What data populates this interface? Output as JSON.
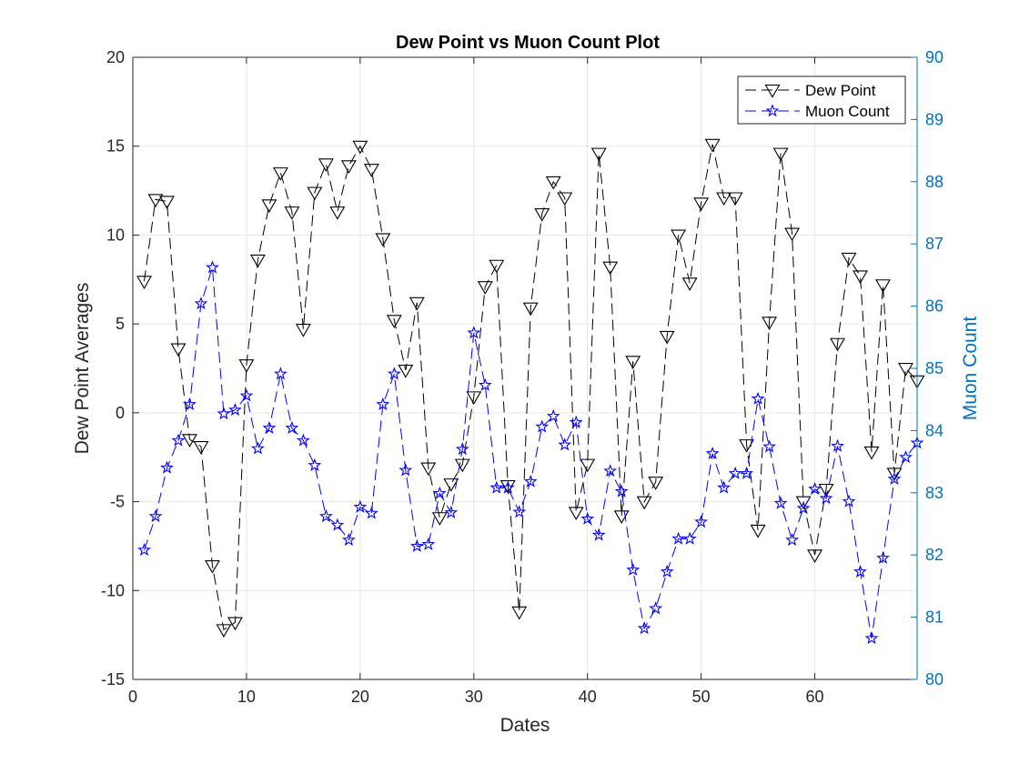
{
  "chart_data": {
    "type": "line",
    "title": "Dew Point vs Muon Count Plot",
    "xlabel": "Dates",
    "ylabel_left": "Dew Point Averages",
    "ylabel_right": "Muon Count",
    "xlim": [
      0,
      69
    ],
    "ylim_left": [
      -15,
      20
    ],
    "ylim_right": [
      80,
      90
    ],
    "xticks": [
      0,
      10,
      20,
      30,
      40,
      50,
      60
    ],
    "yticks_left": [
      -15,
      -10,
      -5,
      0,
      5,
      10,
      15,
      20
    ],
    "yticks_right": [
      80,
      81,
      82,
      83,
      84,
      85,
      86,
      87,
      88,
      89,
      90
    ],
    "grid": true,
    "legend_position": "top-right",
    "colors": {
      "left_axis": "#262626",
      "right_axis": "#0072BD",
      "dew_point": "#000000",
      "muon_count": "#0000ff",
      "grid": "#e6e6e6"
    },
    "series": [
      {
        "name": "Dew Point",
        "axis": "left",
        "marker": "triangle-down",
        "line": "dashed",
        "x": [
          1,
          2,
          3,
          4,
          5,
          6,
          7,
          8,
          9,
          10,
          11,
          12,
          13,
          14,
          15,
          16,
          17,
          18,
          19,
          20,
          21,
          22,
          23,
          24,
          25,
          26,
          27,
          28,
          29,
          30,
          31,
          32,
          33,
          34,
          35,
          36,
          37,
          38,
          39,
          40,
          41,
          42,
          43,
          44,
          45,
          46,
          47,
          48,
          49,
          50,
          51,
          52,
          53,
          54,
          55,
          56,
          57,
          58,
          59,
          60,
          61,
          62,
          63,
          64,
          65,
          66,
          67,
          68,
          69
        ],
        "y": [
          7.4,
          12.0,
          11.9,
          3.6,
          -1.5,
          -1.9,
          -8.6,
          -12.2,
          -11.8,
          2.7,
          8.6,
          11.7,
          13.5,
          11.3,
          4.7,
          12.4,
          14.0,
          11.3,
          13.9,
          15.0,
          13.7,
          9.8,
          5.2,
          2.4,
          6.2,
          -3.1,
          -5.9,
          -4.0,
          -2.9,
          0.9,
          7.1,
          8.3,
          -4.1,
          -11.2,
          5.9,
          11.2,
          13.0,
          12.1,
          -5.6,
          -2.9,
          14.6,
          8.2,
          -5.8,
          2.9,
          -5.0,
          -3.9,
          4.3,
          10.0,
          7.3,
          11.8,
          15.1,
          12.1,
          12.1,
          -1.8,
          -6.6,
          5.1,
          14.6,
          10.1,
          -5.0,
          -8.0,
          -4.3,
          3.9,
          8.7,
          7.7,
          -2.2,
          7.2,
          -3.4,
          2.5,
          1.8
        ]
      },
      {
        "name": "Muon Count",
        "axis": "right",
        "marker": "star",
        "line": "dashed",
        "x": [
          1,
          2,
          3,
          4,
          5,
          6,
          7,
          8,
          9,
          10,
          11,
          12,
          13,
          14,
          15,
          16,
          17,
          18,
          19,
          20,
          21,
          22,
          23,
          24,
          25,
          26,
          27,
          28,
          29,
          30,
          31,
          32,
          33,
          34,
          35,
          36,
          37,
          38,
          39,
          40,
          41,
          42,
          43,
          44,
          45,
          46,
          47,
          48,
          49,
          50,
          51,
          52,
          53,
          54,
          55,
          56,
          57,
          58,
          59,
          60,
          61,
          62,
          63,
          64,
          65,
          66,
          67,
          68,
          69
        ],
        "y": [
          82.08,
          82.62,
          83.4,
          83.84,
          84.42,
          86.04,
          86.62,
          84.27,
          84.33,
          84.56,
          83.71,
          84.04,
          84.91,
          84.04,
          83.84,
          83.44,
          82.62,
          82.48,
          82.24,
          82.77,
          82.67,
          84.42,
          84.91,
          83.36,
          82.14,
          82.17,
          82.99,
          82.68,
          83.7,
          85.57,
          84.73,
          83.08,
          83.08,
          82.69,
          83.18,
          84.06,
          84.23,
          83.77,
          84.13,
          82.58,
          82.32,
          83.35,
          83.02,
          81.76,
          80.82,
          81.14,
          81.73,
          82.26,
          82.26,
          82.53,
          83.63,
          83.08,
          83.31,
          83.31,
          84.51,
          83.74,
          82.83,
          82.24,
          82.75,
          83.06,
          82.91,
          83.75,
          82.86,
          81.73,
          80.66,
          81.95,
          83.22,
          83.57,
          83.8
        ]
      }
    ]
  }
}
